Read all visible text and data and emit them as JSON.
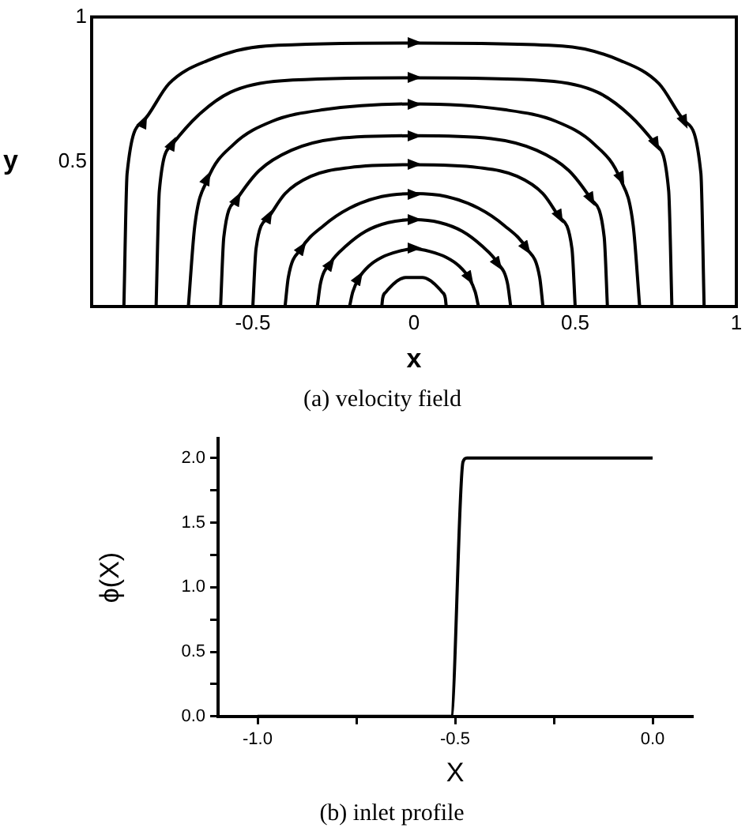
{
  "chart_data": [
    {
      "type": "line",
      "title": "(a) velocity field",
      "xlabel": "x",
      "ylabel": "y",
      "xlim": [
        -1,
        1
      ],
      "ylim": [
        0,
        1
      ],
      "xticks": [
        -0.5,
        0,
        0.5,
        1
      ],
      "yticks": [
        0.5,
        1
      ],
      "series": [
        {
          "color": "#000000",
          "x": [
            -0.1,
            -0.097,
            -0.087,
            -0.071,
            -0.05,
            -0.026,
            0,
            0.026,
            0.05,
            0.071,
            0.087,
            0.097,
            0.1
          ],
          "values": [
            0,
            0.03,
            0.05,
            0.07,
            0.09,
            0.1,
            0.1,
            0.1,
            0.09,
            0.07,
            0.05,
            0.03,
            0
          ]
        },
        {
          "color": "#000000",
          "x": [
            -0.2,
            -0.19,
            -0.17,
            -0.14,
            -0.1,
            -0.05,
            0,
            0.05,
            0.1,
            0.14,
            0.17,
            0.19,
            0.2
          ],
          "values": [
            0,
            0.05,
            0.1,
            0.14,
            0.17,
            0.19,
            0.2,
            0.19,
            0.17,
            0.14,
            0.1,
            0.05,
            0
          ]
        },
        {
          "color": "#000000",
          "x": [
            -0.3,
            -0.29,
            -0.26,
            -0.21,
            -0.15,
            -0.08,
            0,
            0.08,
            0.15,
            0.21,
            0.26,
            0.29,
            0.3
          ],
          "values": [
            0,
            0.08,
            0.15,
            0.21,
            0.26,
            0.29,
            0.3,
            0.29,
            0.26,
            0.21,
            0.15,
            0.08,
            0
          ]
        },
        {
          "color": "#000000",
          "x": [
            -0.4,
            -0.39,
            -0.35,
            -0.28,
            -0.2,
            -0.1,
            0,
            0.1,
            0.2,
            0.28,
            0.35,
            0.39,
            0.4
          ],
          "values": [
            0,
            0.1,
            0.2,
            0.28,
            0.34,
            0.38,
            0.39,
            0.38,
            0.34,
            0.28,
            0.2,
            0.1,
            0
          ]
        },
        {
          "color": "#000000",
          "x": [
            -0.5,
            -0.49,
            -0.45,
            -0.4,
            -0.32,
            -0.2,
            0,
            0.2,
            0.32,
            0.4,
            0.45,
            0.49,
            0.5
          ],
          "values": [
            0,
            0.2,
            0.31,
            0.39,
            0.45,
            0.48,
            0.49,
            0.48,
            0.45,
            0.39,
            0.31,
            0.2,
            0
          ]
        },
        {
          "color": "#000000",
          "x": [
            -0.6,
            -0.59,
            -0.55,
            -0.48,
            -0.38,
            -0.24,
            0,
            0.24,
            0.38,
            0.48,
            0.55,
            0.59,
            0.6
          ],
          "values": [
            0,
            0.24,
            0.37,
            0.47,
            0.54,
            0.58,
            0.59,
            0.58,
            0.54,
            0.47,
            0.37,
            0.24,
            0
          ]
        },
        {
          "color": "#000000",
          "x": [
            -0.7,
            -0.68,
            -0.64,
            -0.56,
            -0.44,
            -0.28,
            0,
            0.28,
            0.44,
            0.56,
            0.64,
            0.68,
            0.7
          ],
          "values": [
            0,
            0.28,
            0.44,
            0.56,
            0.64,
            0.68,
            0.7,
            0.68,
            0.64,
            0.56,
            0.44,
            0.28,
            0
          ]
        },
        {
          "color": "#000000",
          "x": [
            -0.8,
            -0.79,
            -0.75,
            -0.67,
            -0.57,
            -0.41,
            0,
            0.41,
            0.57,
            0.67,
            0.75,
            0.79,
            0.8
          ],
          "values": [
            0,
            0.4,
            0.56,
            0.66,
            0.74,
            0.78,
            0.79,
            0.78,
            0.74,
            0.66,
            0.56,
            0.4,
            0
          ]
        },
        {
          "color": "#000000",
          "x": [
            -0.9,
            -0.89,
            -0.84,
            -0.76,
            -0.64,
            -0.46,
            0,
            0.46,
            0.64,
            0.76,
            0.84,
            0.89,
            0.9
          ],
          "values": [
            0,
            0.46,
            0.64,
            0.77,
            0.85,
            0.9,
            0.91,
            0.9,
            0.85,
            0.77,
            0.64,
            0.46,
            0
          ]
        }
      ]
    },
    {
      "type": "line",
      "title": "(b) inlet profile",
      "xlabel": "X",
      "ylabel": "ϕ(X)",
      "xlim": [
        -1.1,
        0.1
      ],
      "ylim": [
        0,
        2.15
      ],
      "xticks": [
        {
          "value": -1,
          "label": "-1.0"
        },
        {
          "value": -0.75,
          "label": null
        },
        {
          "value": -0.5,
          "label": "-0.5"
        },
        {
          "value": -0.25,
          "label": null
        },
        {
          "value": 0,
          "label": "0.0"
        }
      ],
      "yticks": [
        {
          "value": 0,
          "label": "0.0"
        },
        {
          "value": 0.25,
          "label": null
        },
        {
          "value": 0.5,
          "label": "0.5"
        },
        {
          "value": 0.75,
          "label": null
        },
        {
          "value": 1,
          "label": "1.0"
        },
        {
          "value": 1.25,
          "label": null
        },
        {
          "value": 1.5,
          "label": "1.5"
        },
        {
          "value": 1.75,
          "label": null
        },
        {
          "value": 2,
          "label": "2.0"
        }
      ],
      "series": [
        {
          "color": "#000000",
          "x": [
            -1,
            -0.51,
            -0.48,
            -0.47,
            0
          ],
          "values": [
            0,
            0,
            1.97,
            2,
            2
          ]
        }
      ]
    }
  ]
}
